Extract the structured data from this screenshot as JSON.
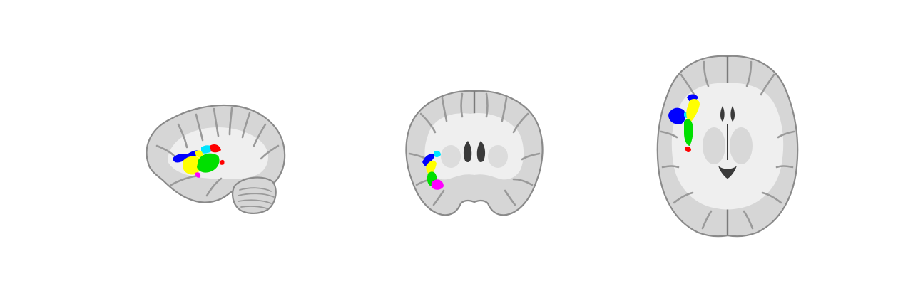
{
  "figure": {
    "views": [
      {
        "id": "sagittal",
        "plane": "sagittal"
      },
      {
        "id": "coronal",
        "plane": "coronal"
      },
      {
        "id": "axial",
        "plane": "axial"
      }
    ],
    "colors": {
      "background": "#ffffff",
      "brain_tissue": "#d6d6d6",
      "brain_edge": "#8a8a8a",
      "white_matter": "#efefef",
      "sulcus": "#9a9a9a",
      "ventricle": "#3a3a3a",
      "roi_blue": "#0000ff",
      "roi_cyan": "#00e5ff",
      "roi_yellow": "#ffff00",
      "roi_green": "#00e000",
      "roi_red": "#ff0000",
      "roi_magenta": "#ff00ff"
    }
  }
}
